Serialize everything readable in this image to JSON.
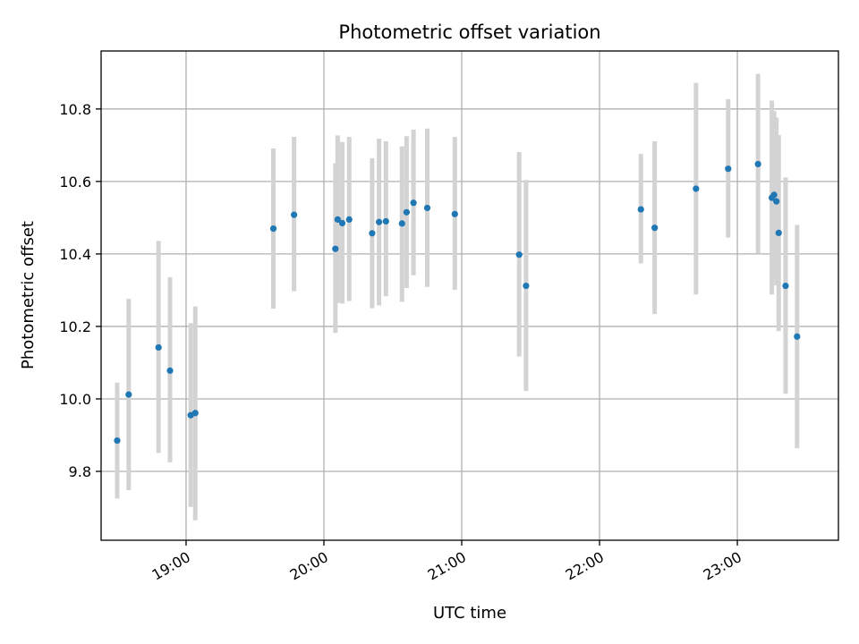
{
  "chart_data": {
    "type": "scatter",
    "title": "Photometric offset variation",
    "xlabel": "UTC time",
    "ylabel": "Photometric offset",
    "x_ticks": [
      "19:00",
      "20:00",
      "21:00",
      "22:00",
      "23:00"
    ],
    "y_ticks": [
      "9.8",
      "10.0",
      "10.2",
      "10.4",
      "10.6",
      "10.8"
    ],
    "xlim": [
      "18:23",
      "23:44"
    ],
    "ylim": [
      9.61,
      10.96
    ],
    "grid": true,
    "colors": {
      "point": "#1f77b4",
      "errorbar": "#d3d3d3",
      "grid": "#b0b0b0"
    },
    "points": [
      {
        "x": "18:30",
        "y": 9.885,
        "lo": 9.725,
        "hi": 10.045
      },
      {
        "x": "18:35",
        "y": 10.012,
        "lo": 9.748,
        "hi": 10.276
      },
      {
        "x": "18:48",
        "y": 10.142,
        "lo": 9.851,
        "hi": 10.436
      },
      {
        "x": "18:53",
        "y": 10.078,
        "lo": 9.825,
        "hi": 10.336
      },
      {
        "x": "19:02",
        "y": 9.955,
        "lo": 9.702,
        "hi": 10.209
      },
      {
        "x": "19:04",
        "y": 9.961,
        "lo": 9.665,
        "hi": 10.255
      },
      {
        "x": "19:38",
        "y": 10.47,
        "lo": 10.249,
        "hi": 10.691
      },
      {
        "x": "19:47",
        "y": 10.508,
        "lo": 10.297,
        "hi": 10.723
      },
      {
        "x": "20:05",
        "y": 10.414,
        "lo": 10.182,
        "hi": 10.65
      },
      {
        "x": "20:06",
        "y": 10.495,
        "lo": 10.265,
        "hi": 10.727
      },
      {
        "x": "20:08",
        "y": 10.485,
        "lo": 10.263,
        "hi": 10.709
      },
      {
        "x": "20:11",
        "y": 10.495,
        "lo": 10.27,
        "hi": 10.723
      },
      {
        "x": "20:21",
        "y": 10.457,
        "lo": 10.25,
        "hi": 10.664
      },
      {
        "x": "20:24",
        "y": 10.488,
        "lo": 10.258,
        "hi": 10.718
      },
      {
        "x": "20:27",
        "y": 10.49,
        "lo": 10.283,
        "hi": 10.711
      },
      {
        "x": "20:34",
        "y": 10.484,
        "lo": 10.268,
        "hi": 10.697
      },
      {
        "x": "20:36",
        "y": 10.515,
        "lo": 10.306,
        "hi": 10.725
      },
      {
        "x": "20:39",
        "y": 10.541,
        "lo": 10.341,
        "hi": 10.743
      },
      {
        "x": "20:45",
        "y": 10.527,
        "lo": 10.309,
        "hi": 10.746
      },
      {
        "x": "20:57",
        "y": 10.51,
        "lo": 10.301,
        "hi": 10.723
      },
      {
        "x": "21:25",
        "y": 10.398,
        "lo": 10.117,
        "hi": 10.681
      },
      {
        "x": "21:28",
        "y": 10.312,
        "lo": 10.022,
        "hi": 10.604
      },
      {
        "x": "22:18",
        "y": 10.523,
        "lo": 10.374,
        "hi": 10.676
      },
      {
        "x": "22:24",
        "y": 10.472,
        "lo": 10.234,
        "hi": 10.711
      },
      {
        "x": "22:42",
        "y": 10.58,
        "lo": 10.288,
        "hi": 10.872
      },
      {
        "x": "22:56",
        "y": 10.635,
        "lo": 10.445,
        "hi": 10.827
      },
      {
        "x": "23:09",
        "y": 10.648,
        "lo": 10.402,
        "hi": 10.897
      },
      {
        "x": "23:15",
        "y": 10.555,
        "lo": 10.288,
        "hi": 10.823
      },
      {
        "x": "23:16",
        "y": 10.563,
        "lo": 10.334,
        "hi": 10.794
      },
      {
        "x": "23:17",
        "y": 10.545,
        "lo": 10.313,
        "hi": 10.776
      },
      {
        "x": "23:18",
        "y": 10.458,
        "lo": 10.187,
        "hi": 10.728
      },
      {
        "x": "23:21",
        "y": 10.312,
        "lo": 10.014,
        "hi": 10.611
      },
      {
        "x": "23:26",
        "y": 10.172,
        "lo": 9.864,
        "hi": 10.48
      }
    ]
  }
}
